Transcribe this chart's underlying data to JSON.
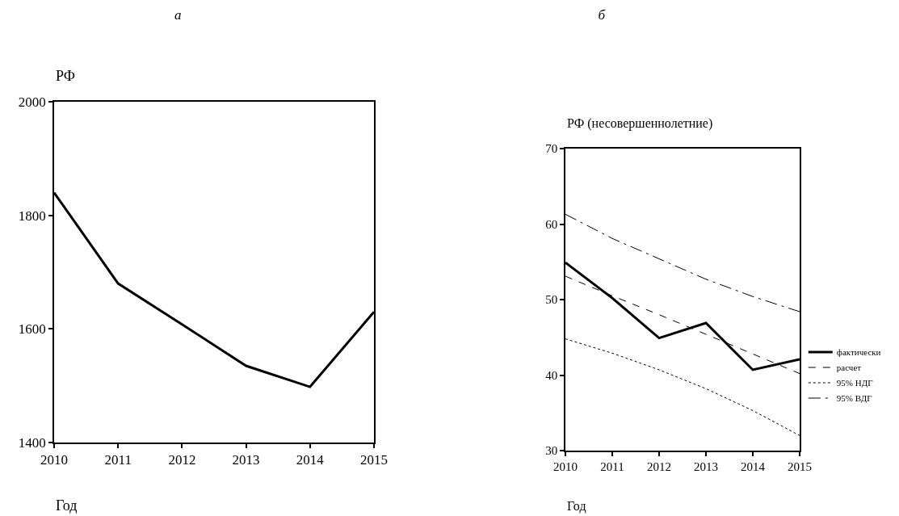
{
  "chart_data": [
    {
      "type": "line",
      "title": "а",
      "ylabel": "РФ",
      "xlabel": "Год",
      "x": [
        2010,
        2011,
        2012,
        2013,
        2014,
        2015
      ],
      "series": [
        {
          "color": "#000000",
          "values": [
            1840,
            1680,
            1608,
            1535,
            1498,
            1630
          ]
        }
      ],
      "line_style": "solid",
      "xlim": [
        2010,
        2015
      ],
      "xticks": [
        2010,
        2011,
        2012,
        2013,
        2014,
        2015
      ],
      "ylim": [
        1400,
        2000
      ],
      "yticks": [
        1400,
        1600,
        1800,
        2000
      ]
    },
    {
      "type": "line",
      "title": "б",
      "ylabel": "РФ (несовершеннолетние)",
      "xlabel": "Год",
      "x": [
        2010,
        2011,
        2012,
        2013,
        2014,
        2015
      ],
      "series": [
        {
          "name": "фактически",
          "color": "#000000",
          "line_style": "solid",
          "values": [
            54.9,
            50.2,
            44.9,
            46.9,
            40.7,
            42.1
          ]
        },
        {
          "name": "расчет",
          "color": "#000000",
          "line_style": "dashed",
          "values": [
            53.1,
            50.5,
            48.0,
            45.4,
            42.8,
            40.2
          ]
        },
        {
          "name": "95% НДГ",
          "color": "#000000",
          "line_style": "dotted",
          "values": [
            44.8,
            42.9,
            40.7,
            38.2,
            35.3,
            32.0
          ]
        },
        {
          "name": "95% ВДГ",
          "color": "#000000",
          "line_style": "dashdot",
          "values": [
            61.3,
            58.1,
            55.4,
            52.7,
            50.4,
            48.4
          ]
        }
      ],
      "xlim": [
        2010,
        2015
      ],
      "xticks": [
        2010,
        2011,
        2012,
        2013,
        2014,
        2015
      ],
      "ylim": [
        30,
        70
      ],
      "yticks": [
        30,
        40,
        50,
        60,
        70
      ],
      "legend": "right"
    }
  ]
}
